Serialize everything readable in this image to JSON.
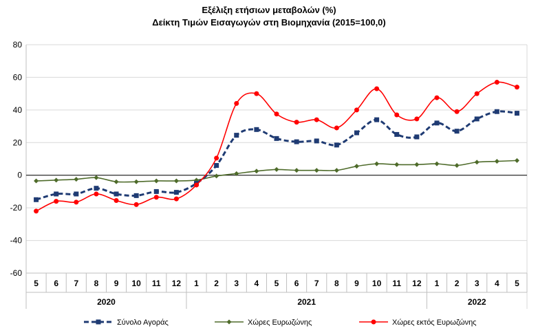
{
  "chart_data": {
    "type": "line",
    "title": "Εξέλιξη ετήσιων μεταβολών (%)",
    "subtitle": "Δείκτη Τιμών Εισαγωγών στη Βιομηχανία (2015=100,0)",
    "ylim": [
      -60,
      80
    ],
    "yticks": [
      -60,
      -40,
      -20,
      0,
      20,
      40,
      60,
      80
    ],
    "categories": [
      "5",
      "6",
      "7",
      "8",
      "9",
      "10",
      "11",
      "12",
      "1",
      "2",
      "3",
      "4",
      "5",
      "6",
      "7",
      "8",
      "9",
      "10",
      "11",
      "12",
      "1",
      "2",
      "3",
      "4",
      "5"
    ],
    "years": [
      {
        "label": "2020",
        "start": 0,
        "end": 7
      },
      {
        "label": "2021",
        "start": 8,
        "end": 19
      },
      {
        "label": "2022",
        "start": 20,
        "end": 24
      }
    ],
    "grid": true,
    "legend": "bottom",
    "series": [
      {
        "name": "Σύνολο Αγοράς",
        "color": "#1f3b73",
        "style": "dashed",
        "marker": "square",
        "values": [
          -15,
          -11.5,
          -11.5,
          -8,
          -11.5,
          -12.5,
          -10,
          -10.5,
          -5,
          6,
          24.5,
          28,
          22.5,
          20.5,
          21,
          18.5,
          26,
          34,
          25,
          23.5,
          32,
          27,
          34.5,
          39,
          38
        ]
      },
      {
        "name": "Χώρες Ευρωζώνης",
        "color": "#4e6b2a",
        "style": "solid",
        "marker": "diamond",
        "values": [
          -3.5,
          -3,
          -2.5,
          -1.5,
          -4,
          -4,
          -3.5,
          -3.5,
          -3,
          -0.5,
          1,
          2.5,
          3.5,
          3,
          3,
          3,
          5.5,
          7,
          6.5,
          6.5,
          7,
          6,
          8,
          8.5,
          9
        ]
      },
      {
        "name": "Χώρες εκτός Ευρωζώνης",
        "color": "#ff0000",
        "style": "solid",
        "marker": "circle",
        "values": [
          -22,
          -16,
          -16.5,
          -11.5,
          -15.5,
          -18,
          -13.5,
          -14.5,
          -6,
          10.5,
          44,
          50,
          37.5,
          32.5,
          34,
          29,
          40,
          53,
          37,
          34.5,
          47.5,
          39,
          50,
          57,
          54
        ]
      }
    ]
  }
}
